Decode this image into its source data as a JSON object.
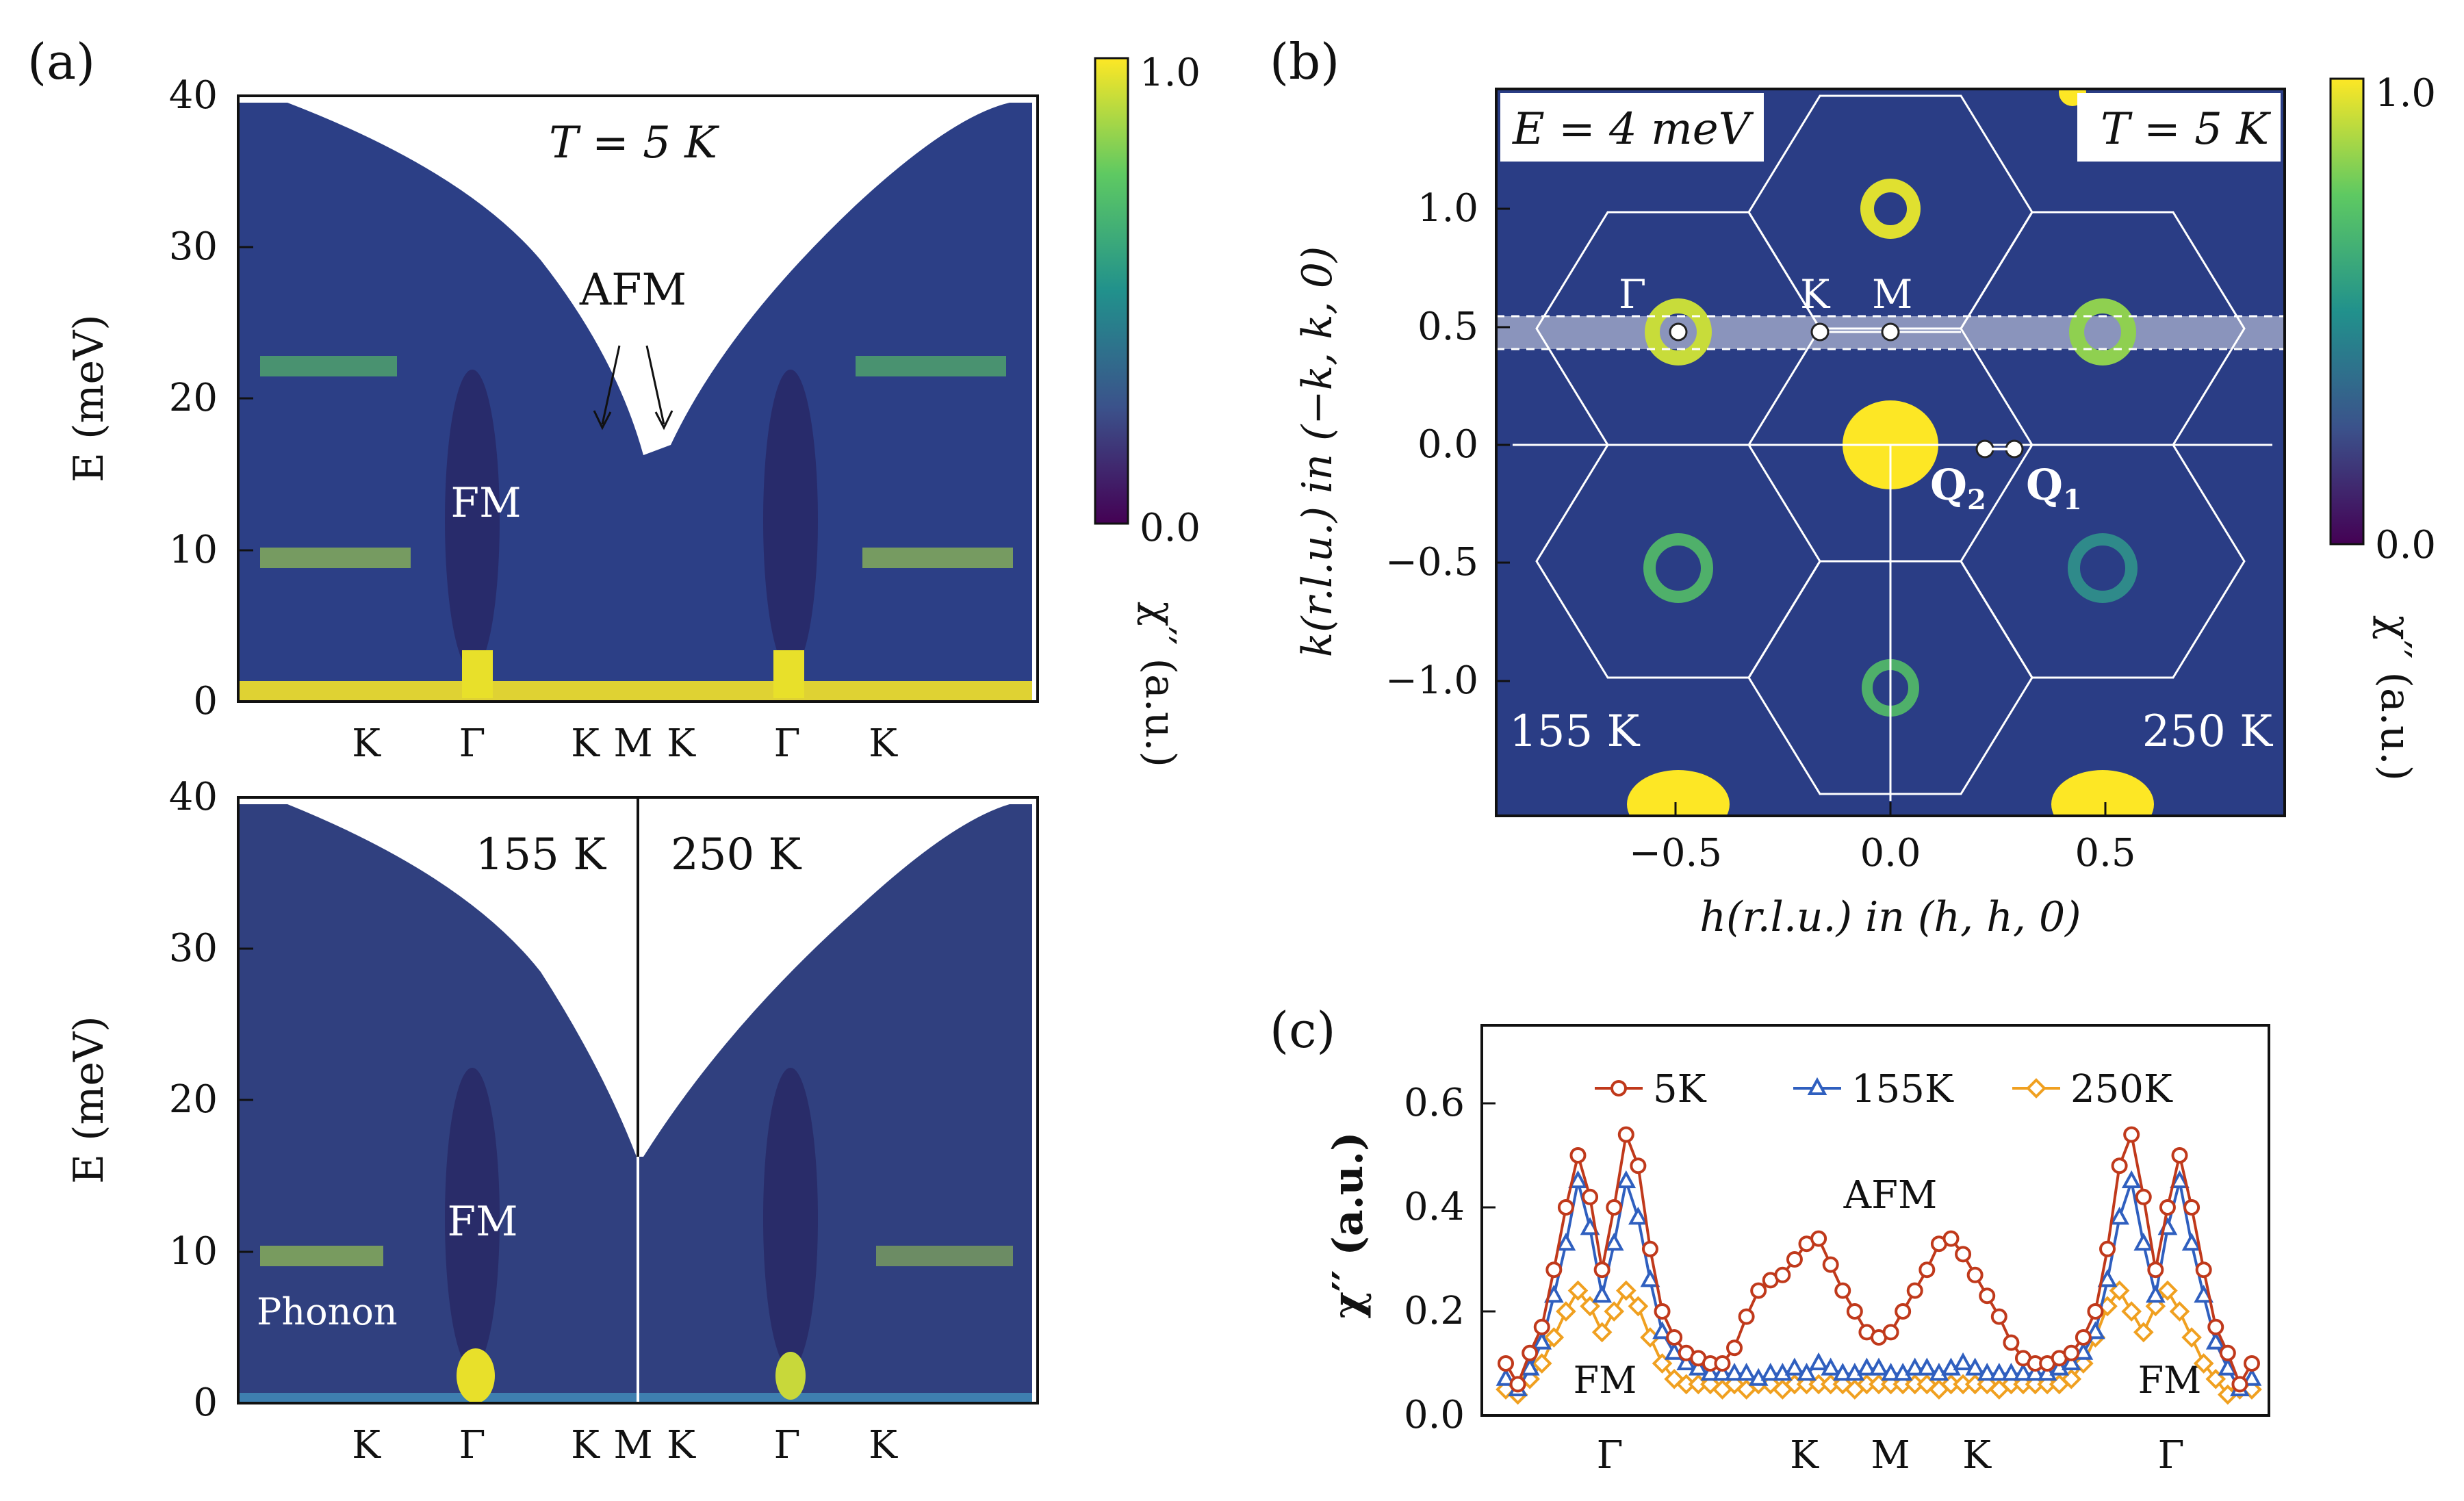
{
  "panels": {
    "a": {
      "label": "(a)"
    },
    "b": {
      "label": "(b)"
    },
    "c": {
      "label": "(c)"
    }
  },
  "colormap": {
    "stops": [
      "#440154",
      "#3b528b",
      "#21918c",
      "#5ec962",
      "#fde725"
    ],
    "tick_top": "1.0",
    "tick_bottom": "0.0",
    "label": "χ′′ (a.u.)"
  },
  "chart_data": [
    {
      "id": "a_top",
      "type": "heatmap",
      "title": "T = 5 K",
      "ylabel": "E (meV)",
      "ylim": [
        0,
        40
      ],
      "yticks": [
        "0",
        "10",
        "20",
        "30",
        "40"
      ],
      "xticks": [
        "K",
        "Γ",
        "K",
        "M",
        "K",
        "Γ",
        "K"
      ],
      "annotations": [
        "AFM",
        "FM"
      ]
    },
    {
      "id": "a_bottom",
      "type": "heatmap",
      "ylabel": "E (meV)",
      "ylim": [
        0,
        40
      ],
      "yticks": [
        "0",
        "10",
        "20",
        "30",
        "40"
      ],
      "xticks": [
        "K",
        "Γ",
        "K",
        "M",
        "K",
        "Γ",
        "K"
      ],
      "annotations": [
        "155 K",
        "250 K",
        "FM",
        "Phonon"
      ]
    },
    {
      "id": "b",
      "type": "heatmap",
      "xlabel": "h(r.l.u.)  in  (h, h, 0)",
      "ylabel": "k(r.l.u.)  in  (−k, k, 0)",
      "xlim": [
        -0.95,
        0.95
      ],
      "ylim": [
        -1.55,
        1.55
      ],
      "xticks": [
        "−0.5",
        "0.0",
        "0.5"
      ],
      "yticks": [
        "1.0",
        "0.5",
        "0.0",
        "−0.5",
        "−1.0"
      ],
      "annotations": [
        "E = 4 meV",
        "T = 5 K",
        "155 K",
        "250 K",
        "Γ",
        "K",
        "M",
        "Q",
        "2",
        "Q",
        "1"
      ]
    },
    {
      "id": "c",
      "type": "line",
      "ylabel": "χ′′ (a.u.)",
      "ylim": [
        0,
        0.75
      ],
      "yticks": [
        "0.0",
        "0.2",
        "0.4",
        "0.6"
      ],
      "xticks": [
        "Γ",
        "K",
        "M",
        "K",
        "Γ"
      ],
      "annotations": [
        "AFM",
        "FM",
        "FM"
      ],
      "series": [
        {
          "name": "5K",
          "color": "#c0391b",
          "marker": "circle",
          "values": [
            0.1,
            0.06,
            0.12,
            0.17,
            0.28,
            0.4,
            0.5,
            0.42,
            0.28,
            0.4,
            0.54,
            0.48,
            0.32,
            0.2,
            0.15,
            0.12,
            0.11,
            0.1,
            0.1,
            0.13,
            0.19,
            0.24,
            0.26,
            0.27,
            0.3,
            0.33,
            0.34,
            0.29,
            0.24,
            0.2,
            0.16,
            0.15,
            0.16,
            0.2,
            0.24,
            0.28,
            0.33,
            0.34,
            0.31,
            0.27,
            0.23,
            0.19,
            0.14,
            0.11,
            0.1,
            0.1,
            0.11,
            0.12,
            0.15,
            0.2,
            0.32,
            0.48,
            0.54,
            0.42,
            0.28,
            0.4,
            0.5,
            0.4,
            0.28,
            0.17,
            0.12,
            0.06,
            0.1
          ]
        },
        {
          "name": "155K",
          "color": "#2f5fbf",
          "marker": "triangle",
          "values": [
            0.07,
            0.05,
            0.09,
            0.14,
            0.23,
            0.33,
            0.45,
            0.36,
            0.23,
            0.33,
            0.45,
            0.38,
            0.26,
            0.16,
            0.12,
            0.1,
            0.09,
            0.08,
            0.08,
            0.08,
            0.08,
            0.07,
            0.08,
            0.08,
            0.09,
            0.08,
            0.1,
            0.09,
            0.08,
            0.08,
            0.09,
            0.09,
            0.08,
            0.08,
            0.09,
            0.09,
            0.08,
            0.09,
            0.1,
            0.09,
            0.08,
            0.08,
            0.08,
            0.08,
            0.08,
            0.08,
            0.09,
            0.1,
            0.12,
            0.16,
            0.26,
            0.38,
            0.45,
            0.33,
            0.23,
            0.36,
            0.45,
            0.33,
            0.23,
            0.14,
            0.09,
            0.05,
            0.07
          ]
        },
        {
          "name": "250K",
          "color": "#f0a020",
          "marker": "diamond",
          "values": [
            0.05,
            0.04,
            0.07,
            0.1,
            0.15,
            0.2,
            0.24,
            0.21,
            0.16,
            0.2,
            0.24,
            0.21,
            0.15,
            0.1,
            0.07,
            0.06,
            0.06,
            0.06,
            0.05,
            0.06,
            0.05,
            0.06,
            0.06,
            0.05,
            0.06,
            0.06,
            0.06,
            0.06,
            0.06,
            0.05,
            0.06,
            0.06,
            0.06,
            0.06,
            0.06,
            0.06,
            0.05,
            0.06,
            0.06,
            0.06,
            0.06,
            0.05,
            0.06,
            0.06,
            0.06,
            0.06,
            0.06,
            0.07,
            0.1,
            0.15,
            0.21,
            0.24,
            0.2,
            0.16,
            0.21,
            0.24,
            0.2,
            0.15,
            0.1,
            0.07,
            0.04,
            0.05,
            0.05
          ]
        }
      ]
    }
  ]
}
